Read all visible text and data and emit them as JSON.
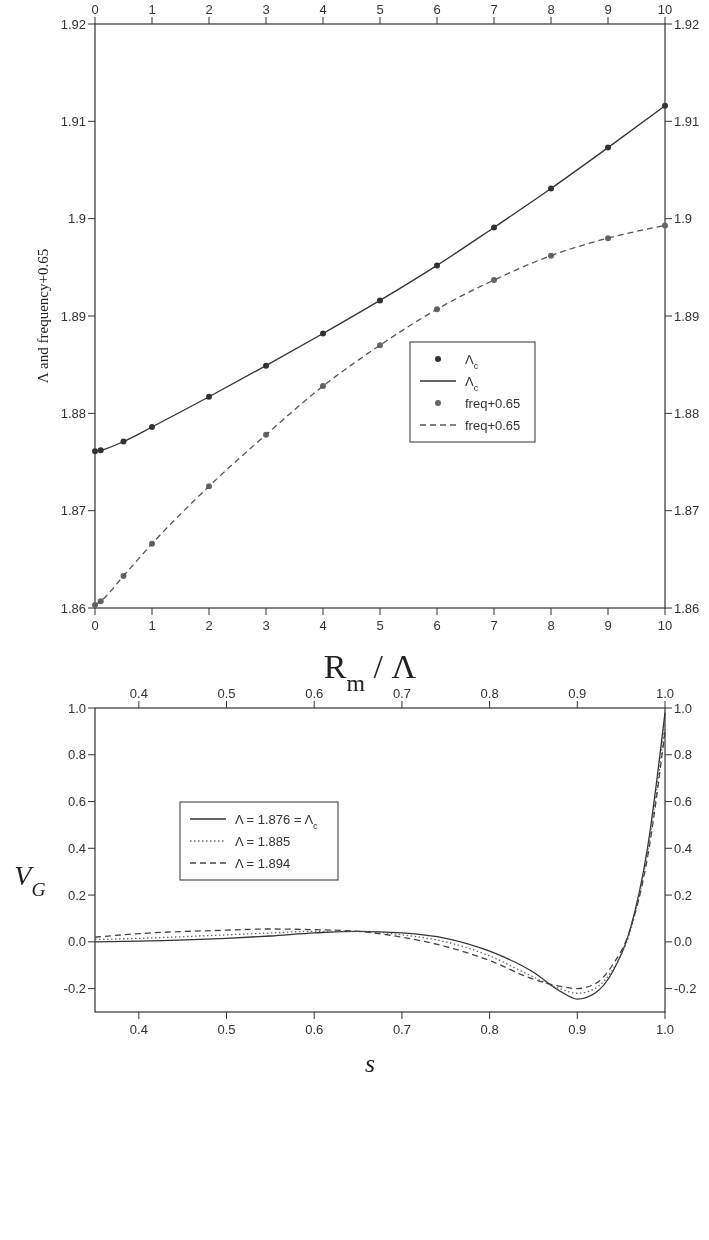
{
  "chart_data": [
    {
      "type": "line",
      "xlabel": "R$_{m}$ / Λ",
      "ylabel": "Λ and frequency+0.65",
      "xlim": [
        0,
        10
      ],
      "xticks": [
        0,
        1,
        2,
        3,
        4,
        5,
        6,
        7,
        8,
        9,
        10
      ],
      "x2lim": [
        0,
        10
      ],
      "x2ticks": [
        0,
        1,
        2,
        3,
        4,
        5,
        6,
        7,
        8,
        9,
        10
      ],
      "ylim": [
        1.86,
        1.92
      ],
      "yticks": [
        1.86,
        1.87,
        1.88,
        1.89,
        1.9,
        1.91,
        1.92
      ],
      "y2lim": [
        1.86,
        1.92
      ],
      "y2ticks": [
        1.86,
        1.87,
        1.88,
        1.89,
        1.9,
        1.91,
        1.92
      ],
      "grid": false,
      "legend": "right",
      "x": [
        0,
        0.1,
        0.5,
        1,
        2,
        3,
        4,
        5,
        6,
        7,
        8,
        9,
        10
      ],
      "series": [
        {
          "name": "Λ$_{c}$",
          "type": "scatter",
          "marker": "circle",
          "color": "#333333",
          "values": [
            1.8761,
            1.8762,
            1.8771,
            1.8786,
            1.8817,
            1.8849,
            1.8882,
            1.8916,
            1.8952,
            1.8991,
            1.9031,
            1.9073,
            1.9116
          ]
        },
        {
          "name": "Λ$_{c}$",
          "line_style": "solid",
          "color": "#333333",
          "values": [
            1.8761,
            1.8762,
            1.8771,
            1.8786,
            1.8817,
            1.8849,
            1.8882,
            1.8916,
            1.8952,
            1.8991,
            1.9031,
            1.9073,
            1.9116
          ]
        },
        {
          "name": "freq+0.65",
          "type": "scatter",
          "marker": "circle",
          "color": "#666666",
          "values": [
            1.8603,
            1.8607,
            1.8633,
            1.8666,
            1.8725,
            1.8778,
            1.8828,
            1.887,
            1.8907,
            1.8937,
            1.8962,
            1.898,
            1.8993
          ]
        },
        {
          "name": "freq+0.65",
          "line_style": "dashed",
          "color": "#555555",
          "values": [
            1.8603,
            1.8607,
            1.8633,
            1.8666,
            1.8725,
            1.8778,
            1.8828,
            1.887,
            1.8907,
            1.8937,
            1.8962,
            1.898,
            1.8993
          ]
        }
      ]
    },
    {
      "type": "line",
      "xlabel": "s",
      "ylabel": "V$_{G}$",
      "xlim": [
        0.35,
        1.0
      ],
      "xticks": [
        0.4,
        0.5,
        0.6,
        0.7,
        0.8,
        0.9,
        {
          "value": 1.0,
          "label": "1.0"
        }
      ],
      "x2lim": [
        0.35,
        1.0
      ],
      "x2ticks": [
        0.4,
        0.5,
        0.6,
        0.7,
        0.8,
        0.9,
        {
          "value": 1.0,
          "label": "1.0"
        }
      ],
      "ylim": [
        -0.3,
        1.0
      ],
      "yticks": [
        -0.2,
        {
          "value": 0,
          "label": "0.0"
        },
        0.2,
        0.4,
        0.6,
        0.8,
        {
          "value": 1.0,
          "label": "1.0"
        }
      ],
      "y2lim": [
        -0.3,
        1.0
      ],
      "y2ticks": [
        -0.2,
        {
          "value": 0,
          "label": "0.0"
        },
        0.2,
        0.4,
        0.6,
        0.8,
        {
          "value": 1.0,
          "label": "1.0"
        }
      ],
      "grid": false,
      "legend": "left",
      "x": [
        0.35,
        0.4,
        0.5,
        0.55,
        0.6,
        0.65,
        0.7,
        0.75,
        0.8,
        0.85,
        0.88,
        0.9,
        0.92,
        0.94,
        0.96,
        0.98,
        1.0
      ],
      "series": [
        {
          "name": "Λ = 1.876 = Λ$_{c}$",
          "line_style": "solid",
          "color": "#333333",
          "values": [
            0.0,
            0.003,
            0.015,
            0.025,
            0.038,
            0.045,
            0.038,
            0.015,
            -0.04,
            -0.13,
            -0.21,
            -0.245,
            -0.22,
            -0.13,
            0.05,
            0.4,
            0.98
          ]
        },
        {
          "name": "Λ = 1.885",
          "line_style": "dotted",
          "color": "#666666",
          "values": [
            0.01,
            0.015,
            0.03,
            0.038,
            0.045,
            0.045,
            0.03,
            0.0,
            -0.06,
            -0.15,
            -0.2,
            -0.22,
            -0.2,
            -0.12,
            0.04,
            0.38,
            0.93
          ]
        },
        {
          "name": "Λ = 1.894",
          "line_style": "dashed",
          "color": "#444444",
          "values": [
            0.02,
            0.035,
            0.05,
            0.055,
            0.052,
            0.045,
            0.02,
            -0.02,
            -0.08,
            -0.16,
            -0.19,
            -0.2,
            -0.18,
            -0.1,
            0.05,
            0.36,
            0.9
          ]
        }
      ]
    }
  ]
}
